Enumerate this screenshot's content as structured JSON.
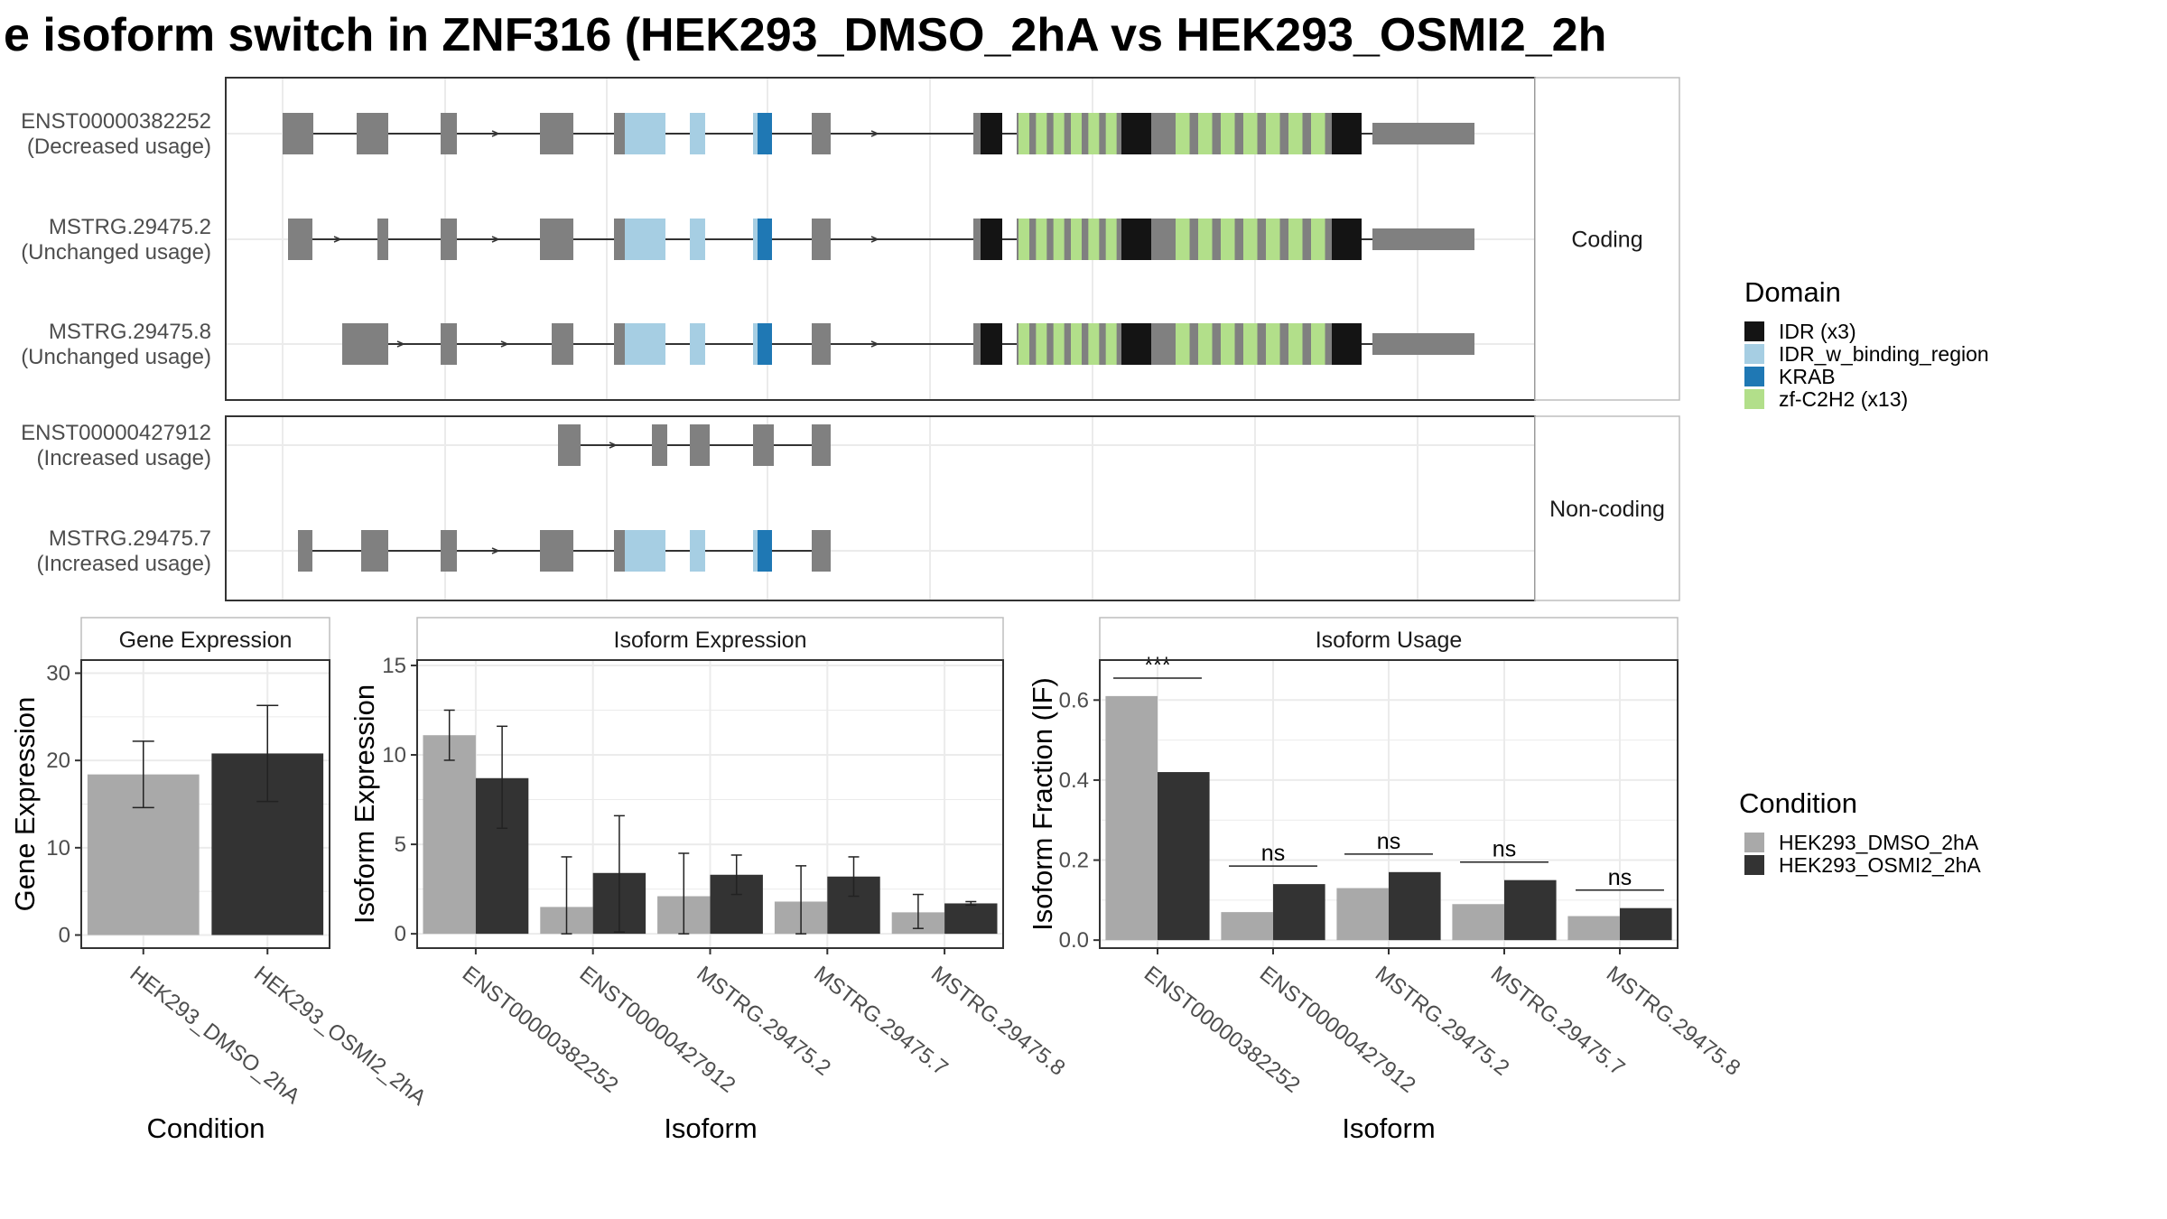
{
  "title": "e isoform switch in ZNF316 (HEK293_DMSO_2hA vs HEK293_OSMI2_2h",
  "colors": {
    "IDR (x3)": "#141414",
    "IDR_w_binding_region": "#A6CEE3",
    "KRAB": "#1F78B4",
    "zf-C2H2 (x13)": "#B2DF8A",
    "exon": "#808080",
    "HEK293_DMSO_2hA": "#A9A9A9",
    "HEK293_OSMI2_2hA": "#333333"
  },
  "structure": {
    "facets": [
      "Coding",
      "Non-coding"
    ],
    "transcripts": [
      {
        "name": "ENST00000382252",
        "usage": "(Decreased usage)",
        "facet": "Coding"
      },
      {
        "name": "MSTRG.29475.2",
        "usage": "(Unchanged usage)",
        "facet": "Coding"
      },
      {
        "name": "MSTRG.29475.8",
        "usage": "(Unchanged usage)",
        "facet": "Coding"
      },
      {
        "name": "ENST00000427912",
        "usage": "(Increased usage)",
        "facet": "Non-coding"
      },
      {
        "name": "MSTRG.29475.7",
        "usage": "(Increased usage)",
        "facet": "Non-coding"
      }
    ],
    "legend_title": "Domain",
    "domains": [
      "IDR (x3)",
      "IDR_w_binding_region",
      "KRAB",
      "zf-C2H2 (x13)"
    ]
  },
  "chart_data": [
    {
      "type": "bar",
      "title": "Gene Expression",
      "xlabel": "Condition",
      "ylabel": "Gene Expression",
      "categories": [
        "HEK293_DMSO_2hA",
        "HEK293_OSMI2_2hA"
      ],
      "values": [
        18.4,
        20.8
      ],
      "err_low": [
        14.6,
        15.3
      ],
      "err_high": [
        22.2,
        26.3
      ],
      "ylim": [
        -1.5,
        31.5
      ],
      "yticks": [
        0,
        10,
        20,
        30
      ],
      "grid": true
    },
    {
      "type": "bar",
      "title": "Isoform Expression",
      "xlabel": "Isoform",
      "ylabel": "Isoform Expression",
      "categories": [
        "ENST00000382252",
        "ENST00000427912",
        "MSTRG.29475.2",
        "MSTRG.29475.7",
        "MSTRG.29475.8"
      ],
      "series": [
        {
          "name": "HEK293_DMSO_2hA",
          "values": [
            11.1,
            1.5,
            2.1,
            1.8,
            1.2
          ],
          "err_low": [
            9.7,
            0.0,
            0.0,
            0.0,
            0.3
          ],
          "err_high": [
            12.5,
            4.3,
            4.5,
            3.8,
            2.2
          ]
        },
        {
          "name": "HEK293_OSMI2_2hA",
          "values": [
            8.7,
            3.4,
            3.3,
            3.2,
            1.7
          ],
          "err_low": [
            5.9,
            0.1,
            2.2,
            2.1,
            1.6
          ],
          "err_high": [
            11.6,
            6.6,
            4.4,
            4.3,
            1.8
          ]
        }
      ],
      "ylim": [
        -0.8,
        15.3
      ],
      "yticks": [
        0,
        5,
        10,
        15
      ],
      "grid": true
    },
    {
      "type": "bar",
      "title": "Isoform Usage",
      "xlabel": "Isoform",
      "ylabel": "Isoform Fraction (IF)",
      "categories": [
        "ENST00000382252",
        "ENST00000427912",
        "MSTRG.29475.2",
        "MSTRG.29475.7",
        "MSTRG.29475.8"
      ],
      "series": [
        {
          "name": "HEK293_DMSO_2hA",
          "values": [
            0.61,
            0.07,
            0.13,
            0.09,
            0.06
          ]
        },
        {
          "name": "HEK293_OSMI2_2hA",
          "values": [
            0.42,
            0.14,
            0.17,
            0.15,
            0.08
          ]
        }
      ],
      "significance": [
        "***",
        "ns",
        "ns",
        "ns",
        "ns"
      ],
      "ylim": [
        -0.02,
        0.7
      ],
      "yticks": [
        0.0,
        0.2,
        0.4,
        0.6
      ],
      "ytick_labels": [
        "0.0",
        "0.2",
        "0.4",
        "0.6"
      ],
      "grid": true
    }
  ],
  "legend_condition": {
    "title": "Condition",
    "items": [
      "HEK293_DMSO_2hA",
      "HEK293_OSMI2_2hA"
    ]
  }
}
